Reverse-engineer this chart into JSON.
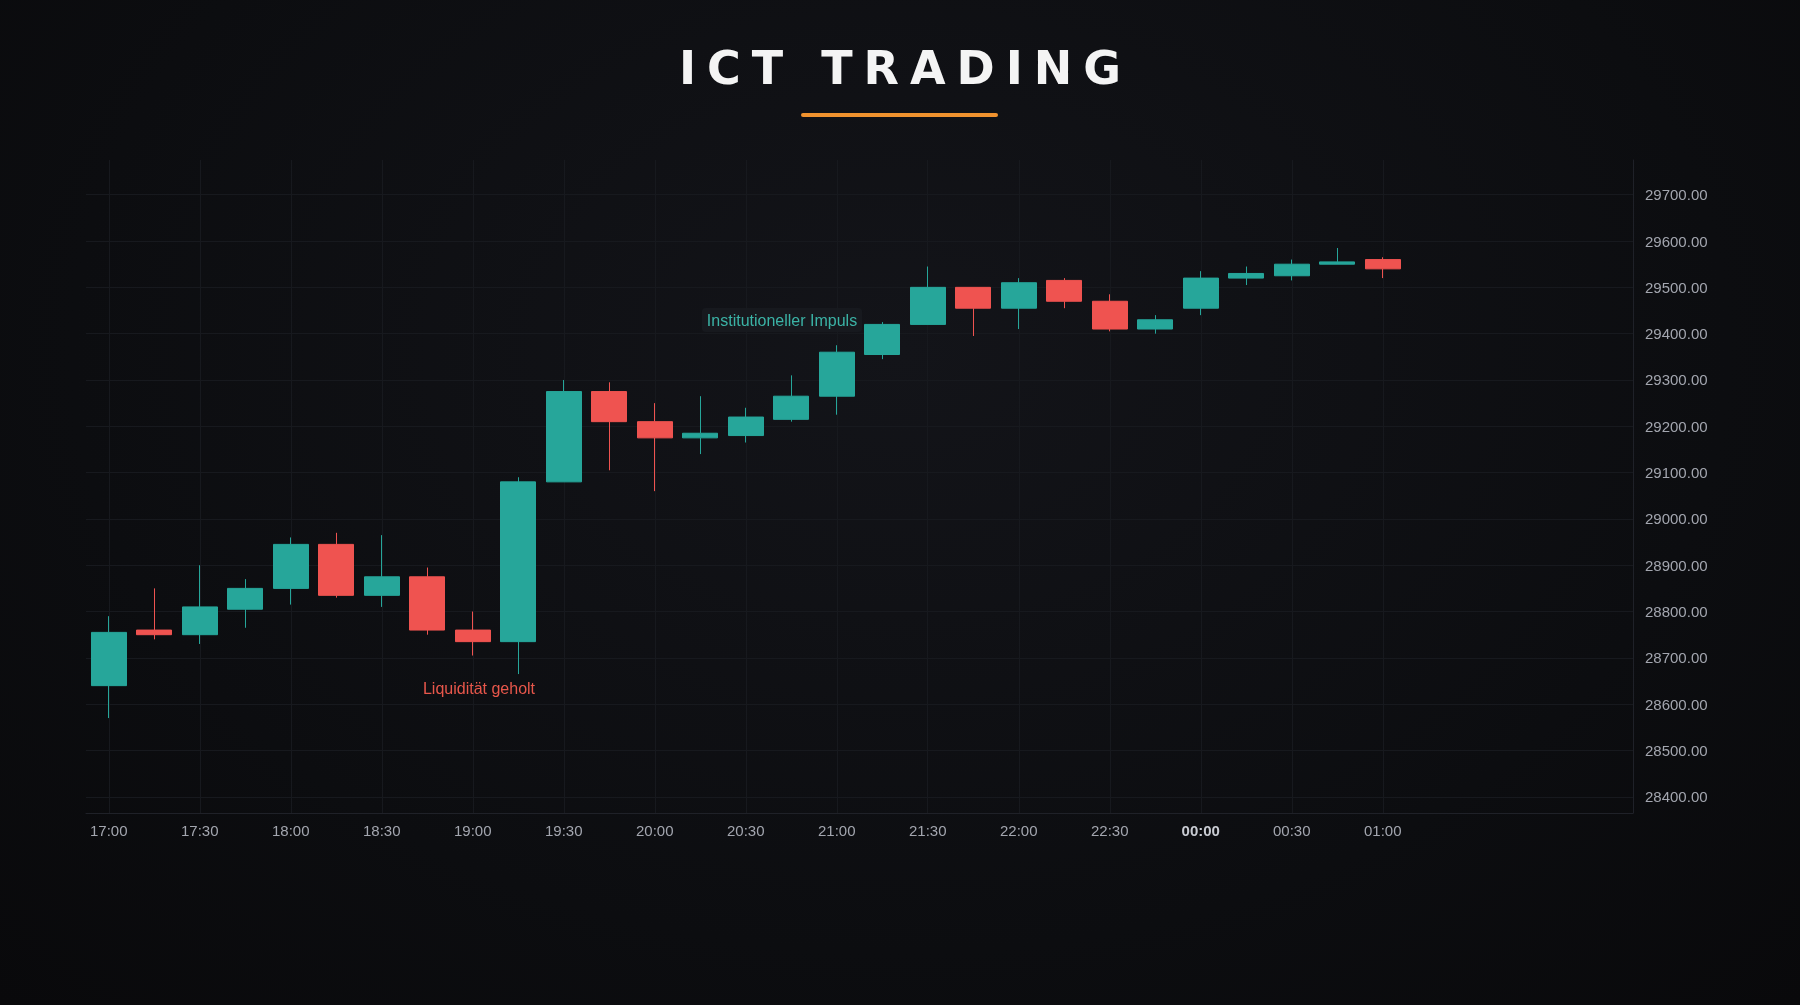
{
  "chart_data": {
    "type": "candlestick",
    "title": "ICT TRADING",
    "categories": [
      "17:00",
      null,
      "17:30",
      null,
      "18:00",
      null,
      "18:30",
      null,
      "19:00",
      null,
      "19:30",
      null,
      "20:00",
      null,
      "20:30",
      null,
      "21:00",
      null,
      "21:30",
      null,
      "22:00",
      null,
      "22:30",
      null,
      "00:00",
      null,
      "00:30",
      null,
      "01:00",
      null,
      null,
      null,
      null,
      null
    ],
    "ohlc": [
      [
        28640,
        28790,
        28570,
        28755
      ],
      [
        28760,
        28850,
        28740,
        28750
      ],
      [
        28750,
        28900,
        28730,
        28810
      ],
      [
        28805,
        28870,
        28765,
        28850
      ],
      [
        28850,
        28960,
        28815,
        28945
      ],
      [
        28945,
        28970,
        28830,
        28835
      ],
      [
        28835,
        28965,
        28810,
        28875
      ],
      [
        28875,
        28895,
        28750,
        28760
      ],
      [
        28760,
        28800,
        28705,
        28735
      ],
      [
        28735,
        29090,
        28665,
        29080
      ],
      [
        29080,
        29300,
        29080,
        29275
      ],
      [
        29275,
        29295,
        29105,
        29210
      ],
      [
        29210,
        29250,
        29060,
        29175
      ],
      [
        29175,
        29265,
        29140,
        29185
      ],
      [
        29180,
        29240,
        29165,
        29220
      ],
      [
        29215,
        29310,
        29210,
        29265
      ],
      [
        29265,
        29375,
        29225,
        29360
      ],
      [
        29355,
        29425,
        29345,
        29420
      ],
      [
        29420,
        29545,
        29420,
        29500
      ],
      [
        29500,
        29500,
        29395,
        29455
      ],
      [
        29455,
        29520,
        29410,
        29510
      ],
      [
        29515,
        29520,
        29455,
        29470
      ],
      [
        29470,
        29485,
        29405,
        29410
      ],
      [
        29410,
        29440,
        29400,
        29430
      ],
      [
        29455,
        29535,
        29440,
        29520
      ],
      [
        29520,
        29545,
        29505,
        29530
      ],
      [
        29525,
        29560,
        29515,
        29550
      ],
      [
        29550,
        29585,
        29550,
        29555
      ],
      [
        29560,
        29565,
        29520,
        29540
      ],
      null,
      null,
      null,
      null,
      null
    ],
    "colors": [
      "#26a69a",
      "#ef5350",
      "#26a69a",
      "#26a69a",
      "#26a69a",
      "#ef5350",
      "#26a69a",
      "#ef5350",
      "#ef5350",
      "#26a69a",
      "#26a69a",
      "#ef5350",
      "#ef5350",
      "#26a69a",
      "#26a69a",
      "#26a69a",
      "#26a69a",
      "#26a69a",
      "#26a69a",
      "#ef5350",
      "#26a69a",
      "#ef5350",
      "#ef5350",
      "#26a69a",
      "#26a69a",
      "#26a69a",
      "#26a69a",
      "#26a69a",
      "#ef5350",
      null,
      null,
      null,
      null,
      null
    ],
    "ylim": [
      28365,
      29775
    ],
    "yticks": [
      {
        "value": 28400,
        "label": "28400.00"
      },
      {
        "value": 28500,
        "label": "28500.00"
      },
      {
        "value": 28600,
        "label": "28600.00"
      },
      {
        "value": 28700,
        "label": "28700.00"
      },
      {
        "value": 28800,
        "label": "28800.00"
      },
      {
        "value": 28900,
        "label": "28900.00"
      },
      {
        "value": 29000,
        "label": "29000.00"
      },
      {
        "value": 29100,
        "label": "29100.00"
      },
      {
        "value": 29200,
        "label": "29200.00"
      },
      {
        "value": 29300,
        "label": "29300.00"
      },
      {
        "value": 29400,
        "label": "29400.00"
      },
      {
        "value": 29500,
        "label": "29500.00"
      },
      {
        "value": 29600,
        "label": "29600.00"
      },
      {
        "value": 29700,
        "label": "29700.00"
      }
    ],
    "grid": true,
    "annotations": [
      "Institutioneller Impuls",
      "Liquidität geholt"
    ]
  }
}
